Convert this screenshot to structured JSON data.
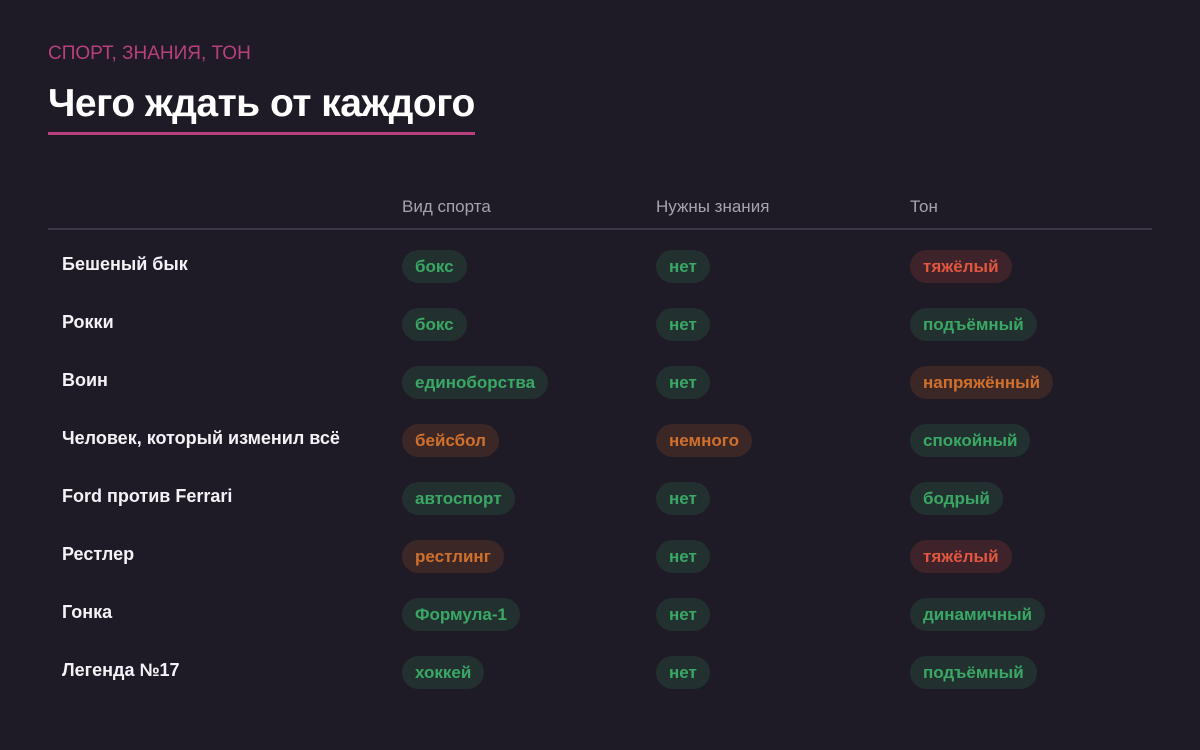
{
  "header": {
    "eyebrow": "СПОРТ, ЗНАНИЯ, ТОН",
    "title": "Чего ждать от каждого"
  },
  "table": {
    "columns": [
      "Вид спорта",
      "Нужны знания",
      "Тон"
    ],
    "rows": [
      {
        "title": "Бешеный бык",
        "cells": [
          {
            "text": "бокс",
            "color": "#3aa865"
          },
          {
            "text": "нет",
            "color": "#3aa865"
          },
          {
            "text": "тяжёлый",
            "color": "#e0563f"
          }
        ]
      },
      {
        "title": "Рокки",
        "cells": [
          {
            "text": "бокс",
            "color": "#3aa865"
          },
          {
            "text": "нет",
            "color": "#3aa865"
          },
          {
            "text": "подъёмный",
            "color": "#3aa865"
          }
        ]
      },
      {
        "title": "Воин",
        "cells": [
          {
            "text": "единоборства",
            "color": "#3aa865"
          },
          {
            "text": "нет",
            "color": "#3aa865"
          },
          {
            "text": "напряжённый",
            "color": "#d0702c"
          }
        ]
      },
      {
        "title": "Человек, который изменил всё",
        "cells": [
          {
            "text": "бейсбол",
            "color": "#d0702c"
          },
          {
            "text": "немного",
            "color": "#d0702c"
          },
          {
            "text": "спокойный",
            "color": "#3aa865"
          }
        ]
      },
      {
        "title": "Ford против Ferrari",
        "cells": [
          {
            "text": "автоспорт",
            "color": "#3aa865"
          },
          {
            "text": "нет",
            "color": "#3aa865"
          },
          {
            "text": "бодрый",
            "color": "#3aa865"
          }
        ]
      },
      {
        "title": "Рестлер",
        "cells": [
          {
            "text": "рестлинг",
            "color": "#d0702c"
          },
          {
            "text": "нет",
            "color": "#3aa865"
          },
          {
            "text": "тяжёлый",
            "color": "#e0563f"
          }
        ]
      },
      {
        "title": "Гонка",
        "cells": [
          {
            "text": "Формула-1",
            "color": "#3aa865"
          },
          {
            "text": "нет",
            "color": "#3aa865"
          },
          {
            "text": "динамичный",
            "color": "#3aa865"
          }
        ]
      },
      {
        "title": "Легенда №17",
        "cells": [
          {
            "text": "хоккей",
            "color": "#3aa865"
          },
          {
            "text": "нет",
            "color": "#3aa865"
          },
          {
            "text": "подъёмный",
            "color": "#3aa865"
          }
        ]
      }
    ]
  }
}
